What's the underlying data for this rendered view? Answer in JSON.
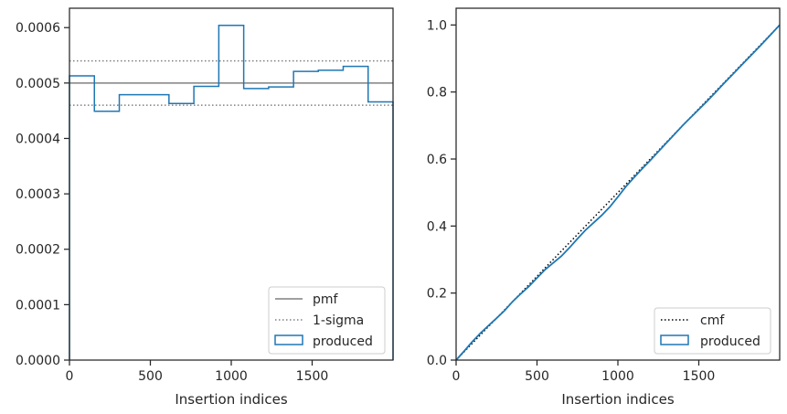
{
  "chart_data": [
    {
      "type": "histogram",
      "xlabel": "Insertion indices",
      "ylabel": "",
      "xlim": [
        0,
        2000
      ],
      "ylim": [
        0,
        0.000635
      ],
      "xticks": [
        0,
        500,
        1000,
        1500
      ],
      "xtick_labels": [
        "0",
        "500",
        "1000",
        "1500"
      ],
      "yticks": [
        0,
        0.0001,
        0.0002,
        0.0003,
        0.0004,
        0.0005,
        0.0006
      ],
      "ytick_labels": [
        "0.0000",
        "0.0001",
        "0.0002",
        "0.0003",
        "0.0004",
        "0.0005",
        "0.0006"
      ],
      "grid": false,
      "legend_position": "lower right",
      "pmf": 0.0005,
      "sigma_band": [
        0.00046,
        0.00054
      ],
      "bin_edges": [
        0,
        154,
        308,
        462,
        615,
        769,
        923,
        1077,
        1231,
        1385,
        1538,
        1692,
        1846,
        2000
      ],
      "values": [
        0.000513,
        0.000449,
        0.000479,
        0.000479,
        0.000463,
        0.000494,
        0.000604,
        0.00049,
        0.000493,
        0.000521,
        0.000523,
        0.00053,
        0.000466
      ],
      "series": [
        {
          "name": "pmf",
          "style": "solid",
          "color": "#808080"
        },
        {
          "name": "1-sigma",
          "style": "dotted",
          "color": "#808080"
        },
        {
          "name": "produced",
          "style": "step",
          "color": "#1f77b4"
        }
      ]
    },
    {
      "type": "line",
      "xlabel": "Insertion indices",
      "ylabel": "",
      "xlim": [
        0,
        2000
      ],
      "ylim": [
        0,
        1.05
      ],
      "xticks": [
        0,
        500,
        1000,
        1500
      ],
      "xtick_labels": [
        "0",
        "500",
        "1000",
        "1500"
      ],
      "yticks": [
        0,
        0.2,
        0.4,
        0.6,
        0.8,
        1.0
      ],
      "ytick_labels": [
        "0.0",
        "0.2",
        "0.4",
        "0.6",
        "0.8",
        "1.0"
      ],
      "grid": false,
      "legend_position": "lower right",
      "series": [
        {
          "name": "cmf",
          "style": "dotted",
          "color": "#000000",
          "x": [
            0,
            2000
          ],
          "y": [
            0,
            1.0
          ]
        },
        {
          "name": "produced",
          "style": "step",
          "color": "#1f77b4",
          "x": [
            0,
            50,
            100,
            150,
            200,
            250,
            300,
            350,
            400,
            450,
            500,
            550,
            600,
            650,
            700,
            750,
            800,
            850,
            900,
            950,
            1000,
            1050,
            1100,
            1150,
            1200,
            1250,
            1300,
            1350,
            1400,
            1450,
            1500,
            1550,
            1600,
            1650,
            1700,
            1750,
            1800,
            1850,
            1900,
            1950,
            2000
          ],
          "y": [
            0,
            0.027,
            0.055,
            0.08,
            0.103,
            0.125,
            0.148,
            0.175,
            0.198,
            0.22,
            0.245,
            0.27,
            0.29,
            0.31,
            0.335,
            0.362,
            0.388,
            0.41,
            0.432,
            0.457,
            0.487,
            0.518,
            0.545,
            0.571,
            0.596,
            0.622,
            0.648,
            0.674,
            0.7,
            0.724,
            0.748,
            0.772,
            0.797,
            0.823,
            0.848,
            0.873,
            0.898,
            0.923,
            0.948,
            0.974,
            1.0
          ]
        }
      ]
    }
  ]
}
